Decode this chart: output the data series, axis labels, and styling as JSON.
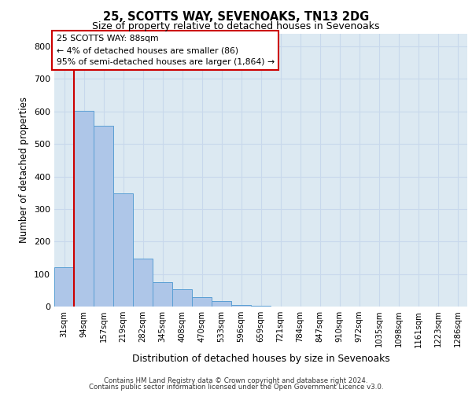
{
  "title1": "25, SCOTTS WAY, SEVENOAKS, TN13 2DG",
  "title2": "Size of property relative to detached houses in Sevenoaks",
  "xlabel": "Distribution of detached houses by size in Sevenoaks",
  "ylabel": "Number of detached properties",
  "bar_labels": [
    "31sqm",
    "94sqm",
    "157sqm",
    "219sqm",
    "282sqm",
    "345sqm",
    "408sqm",
    "470sqm",
    "533sqm",
    "596sqm",
    "659sqm",
    "721sqm",
    "784sqm",
    "847sqm",
    "910sqm",
    "972sqm",
    "1035sqm",
    "1098sqm",
    "1161sqm",
    "1223sqm",
    "1286sqm"
  ],
  "bar_heights": [
    120,
    603,
    557,
    347,
    148,
    75,
    52,
    30,
    18,
    5,
    2,
    1,
    1,
    0,
    0,
    0,
    0,
    0,
    0,
    0,
    0
  ],
  "bar_color": "#aec6e8",
  "bar_edge_color": "#5a9fd4",
  "annotation_title": "25 SCOTTS WAY: 88sqm",
  "annotation_line1": "← 4% of detached houses are smaller (86)",
  "annotation_line2": "95% of semi-detached houses are larger (1,864) →",
  "vline_position": 0.5,
  "ylim": [
    0,
    840
  ],
  "yticks": [
    0,
    100,
    200,
    300,
    400,
    500,
    600,
    700,
    800
  ],
  "footer1": "Contains HM Land Registry data © Crown copyright and database right 2024.",
  "footer2": "Contains public sector information licensed under the Open Government Licence v3.0.",
  "annotation_box_color": "#ffffff",
  "annotation_box_edge": "#cc0000",
  "vline_color": "#cc0000",
  "grid_color": "#c8d8ec",
  "bg_color": "#dce9f2",
  "fig_bg": "#ffffff"
}
